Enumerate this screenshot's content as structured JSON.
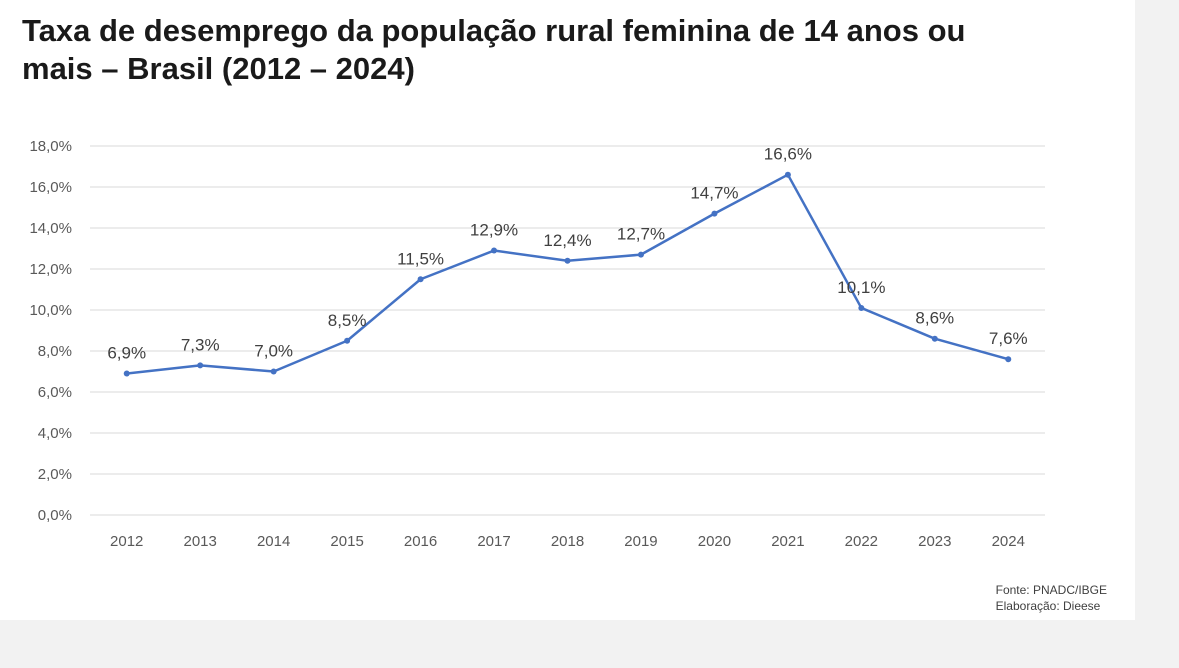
{
  "chart_data": {
    "type": "line",
    "title": "Taxa de desemprego da população rural feminina de 14 anos ou mais – Brasil (2012 – 2024)",
    "x": [
      "2012",
      "2013",
      "2014",
      "2015",
      "2016",
      "2017",
      "2018",
      "2019",
      "2020",
      "2021",
      "2022",
      "2023",
      "2024"
    ],
    "series": [
      {
        "values": [
          6.9,
          7.3,
          7.0,
          8.5,
          11.5,
          12.9,
          12.4,
          12.7,
          14.7,
          16.6,
          10.1,
          8.6,
          7.6
        ],
        "labels": [
          "6,9%",
          "7,3%",
          "7,0%",
          "8,5%",
          "11,5%",
          "12,9%",
          "12,4%",
          "12,7%",
          "14,7%",
          "16,6%",
          "10,1%",
          "8,6%",
          "7,6%"
        ]
      }
    ],
    "ylim": [
      0,
      18
    ],
    "yticks": [
      0,
      2,
      4,
      6,
      8,
      10,
      12,
      14,
      16,
      18
    ],
    "ytick_labels": [
      "0,0%",
      "2,0%",
      "4,0%",
      "6,0%",
      "8,0%",
      "10,0%",
      "12,0%",
      "14,0%",
      "16,0%",
      "18,0%"
    ],
    "grid": true,
    "line_color": "#4472c4",
    "grid_color": "#d9d9d9"
  },
  "source": {
    "line1": "Fonte: PNADC/IBGE",
    "line2": "Elaboração: Dieese"
  }
}
